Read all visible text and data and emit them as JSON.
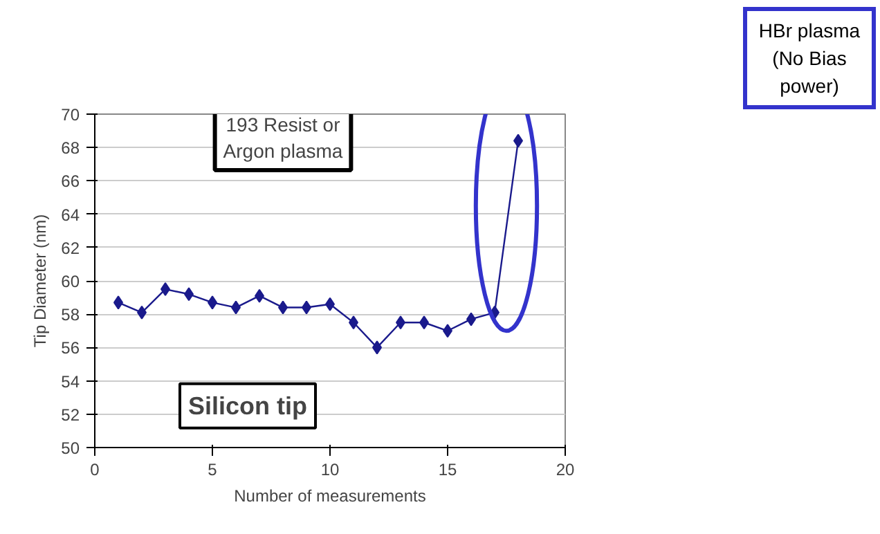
{
  "chart_data": {
    "type": "line",
    "xlabel": "Number of measurements",
    "ylabel": "Tip Diameter (nm)",
    "x": [
      1,
      2,
      3,
      4,
      5,
      6,
      7,
      8,
      9,
      10,
      11,
      12,
      13,
      14,
      15,
      16,
      17,
      18
    ],
    "series": [
      {
        "color": "#1a1a8c",
        "values": [
          58.7,
          58.1,
          59.5,
          59.2,
          58.7,
          58.4,
          59.1,
          58.4,
          58.4,
          58.6,
          57.5,
          56.0,
          57.5,
          57.5,
          57.0,
          57.7,
          58.1,
          68.4
        ]
      }
    ],
    "xlim": [
      0,
      20
    ],
    "xticks": [
      0,
      5,
      10,
      15,
      20
    ],
    "ylim": [
      50,
      70
    ],
    "yticks": [
      50,
      52,
      54,
      56,
      58,
      60,
      62,
      64,
      66,
      68,
      70
    ],
    "grid": "y",
    "marker": "diamond",
    "line_style": "solid",
    "annotations": [
      "193 Resist or\nArgon plasma",
      "HBr plasma\n(No Bias power)",
      "Silicon tip"
    ]
  }
}
